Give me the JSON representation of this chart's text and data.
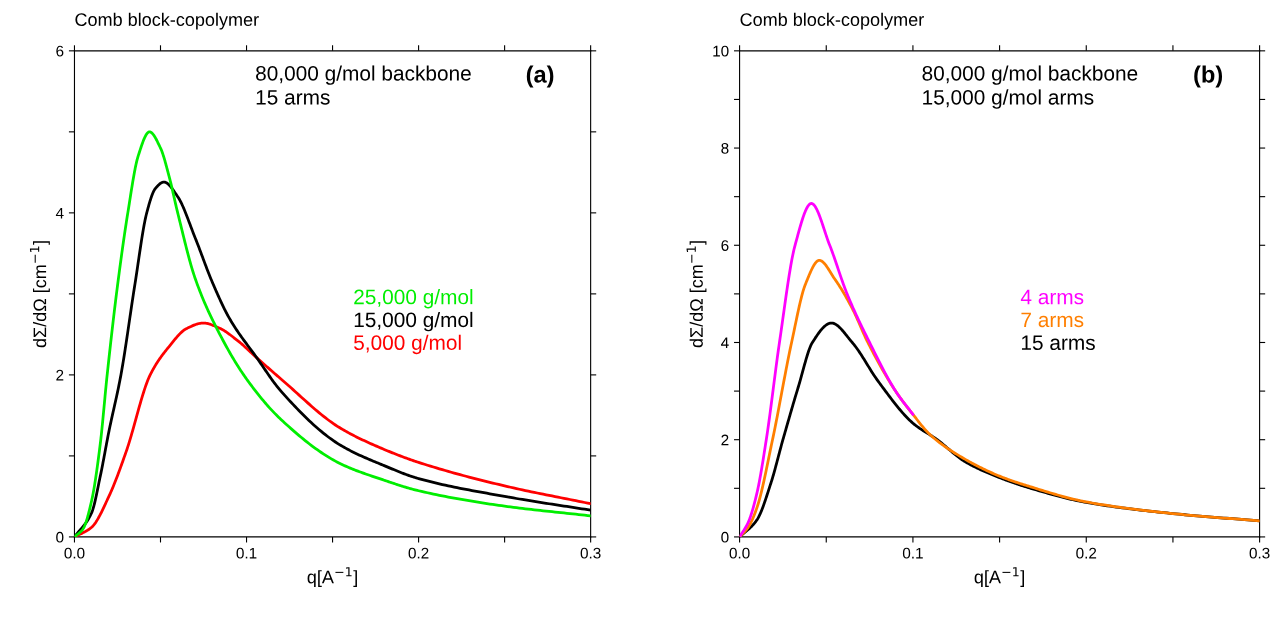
{
  "chart_data": [
    {
      "type": "line",
      "title": "Comb block-copolymer",
      "xlabel": "q[A$^{−1}$]",
      "ylabel": "dΣ/dΩ [cm$^{−1}$]",
      "annotations": [
        "80,000 g/mol backbone\n15 arms",
        "(a)"
      ],
      "xlim": [
        0,
        0.3
      ],
      "xticks": [
        {
          "value": 0,
          "label": "0.0"
        },
        {
          "value": 0.05,
          "label": null
        },
        0.1,
        {
          "value": 0.15,
          "label": null
        },
        0.2,
        {
          "value": 0.25,
          "label": null
        },
        0.3
      ],
      "ylim": [
        0,
        6
      ],
      "yticks": [
        0,
        {
          "value": 1,
          "label": null
        },
        2,
        {
          "value": 3,
          "label": null
        },
        4,
        {
          "value": 5,
          "label": null
        },
        6
      ],
      "legend": "center right",
      "grid": false,
      "marker": "none",
      "line_style": "solid",
      "series": [
        {
          "name": "25,000 g/mol",
          "color": "#00ee00",
          "x": [
            0,
            0.005,
            0.01,
            0.015,
            0.019,
            0.025,
            0.031,
            0.037,
            0.0436,
            0.05,
            0.055,
            0.06,
            0.07,
            0.084,
            0.1,
            0.12,
            0.154,
            0.18,
            0.2,
            0.25,
            0.3
          ],
          "values": [
            0,
            0.1,
            0.45,
            1.15,
            2.0,
            3.1,
            4.0,
            4.7,
            5.0,
            4.8,
            4.45,
            4.0,
            3.2,
            2.52,
            1.95,
            1.45,
            0.91,
            0.7,
            0.57,
            0.38,
            0.26
          ]
        },
        {
          "name": "15,000 g/mol",
          "color": "#000000",
          "x": [
            0,
            0.01,
            0.015,
            0.02,
            0.027,
            0.035,
            0.042,
            0.047,
            0.052,
            0.06,
            0.07,
            0.08,
            0.09,
            0.106,
            0.12,
            0.154,
            0.18,
            0.2,
            0.25,
            0.3
          ],
          "values": [
            0,
            0.3,
            0.75,
            1.3,
            2.0,
            3.1,
            4.0,
            4.3,
            4.38,
            4.2,
            3.7,
            3.15,
            2.7,
            2.21,
            1.8,
            1.14,
            0.88,
            0.72,
            0.5,
            0.33
          ]
        },
        {
          "name": "5,000 g/mol",
          "color": "#ff0000",
          "x": [
            0,
            0.01,
            0.02,
            0.03,
            0.044,
            0.055,
            0.065,
            0.075,
            0.084,
            0.095,
            0.106,
            0.12,
            0.154,
            0.18,
            0.2,
            0.25,
            0.3
          ],
          "values": [
            0,
            0.12,
            0.5,
            1.05,
            2.0,
            2.35,
            2.57,
            2.64,
            2.58,
            2.42,
            2.21,
            1.95,
            1.35,
            1.08,
            0.92,
            0.63,
            0.41
          ]
        }
      ]
    },
    {
      "type": "line",
      "title": "Comb block-copolymer",
      "xlabel": "q[A$^{−1}$]",
      "ylabel": "dΣ/dΩ [cm$^{−1}$]",
      "annotations": [
        "80,000 g/mol backbone\n15,000 g/mol arms",
        "(b)"
      ],
      "xlim": [
        0,
        0.3
      ],
      "xticks": [
        {
          "value": 0,
          "label": "0.0"
        },
        {
          "value": 0.05,
          "label": null
        },
        0.1,
        {
          "value": 0.15,
          "label": null
        },
        0.2,
        {
          "value": 0.25,
          "label": null
        },
        0.3
      ],
      "ylim": [
        0,
        10
      ],
      "yticks": [
        0,
        {
          "value": 1,
          "label": null
        },
        2,
        {
          "value": 3,
          "label": null
        },
        4,
        {
          "value": 5,
          "label": null
        },
        6,
        {
          "value": 7,
          "label": null
        },
        8,
        {
          "value": 9,
          "label": null
        },
        10
      ],
      "legend": "center right",
      "grid": false,
      "marker": "none",
      "line_style": "solid",
      "series": [
        {
          "name": "4 arms",
          "color": "#ff00ff",
          "x": [
            0,
            0.005,
            0.01,
            0.0154,
            0.023,
            0.032,
            0.0414,
            0.052,
            0.062,
            0.075,
            0.09,
            0.1
          ],
          "values": [
            0,
            0.3,
            0.9,
            2.0,
            4.0,
            6.0,
            6.86,
            6.0,
            5.0,
            4.0,
            3.0,
            2.52
          ]
        },
        {
          "name": "7 arms",
          "color": "#ff7f00",
          "x": [
            0,
            0.005,
            0.01,
            0.019,
            0.03,
            0.038,
            0.046,
            0.055,
            0.065,
            0.074,
            0.09,
            0.1,
            0.11,
            0.13,
            0.15,
            0.168,
            0.2,
            0.25,
            0.3
          ],
          "values": [
            0,
            0.2,
            0.6,
            2.0,
            4.0,
            5.2,
            5.69,
            5.3,
            4.7,
            4.0,
            3.0,
            2.52,
            2.1,
            1.6,
            1.25,
            1.03,
            0.72,
            0.48,
            0.33
          ]
        },
        {
          "name": "15 arms",
          "color": "#000000",
          "x": [
            0,
            0.01,
            0.018,
            0.025,
            0.034,
            0.042,
            0.053,
            0.065,
            0.08,
            0.1,
            0.114,
            0.13,
            0.15,
            0.168,
            0.2,
            0.25,
            0.3
          ],
          "values": [
            0,
            0.35,
            1.1,
            2.0,
            3.1,
            4.0,
            4.4,
            4.0,
            3.2,
            2.34,
            2.0,
            1.55,
            1.22,
            1.0,
            0.71,
            0.48,
            0.33
          ]
        }
      ]
    }
  ]
}
